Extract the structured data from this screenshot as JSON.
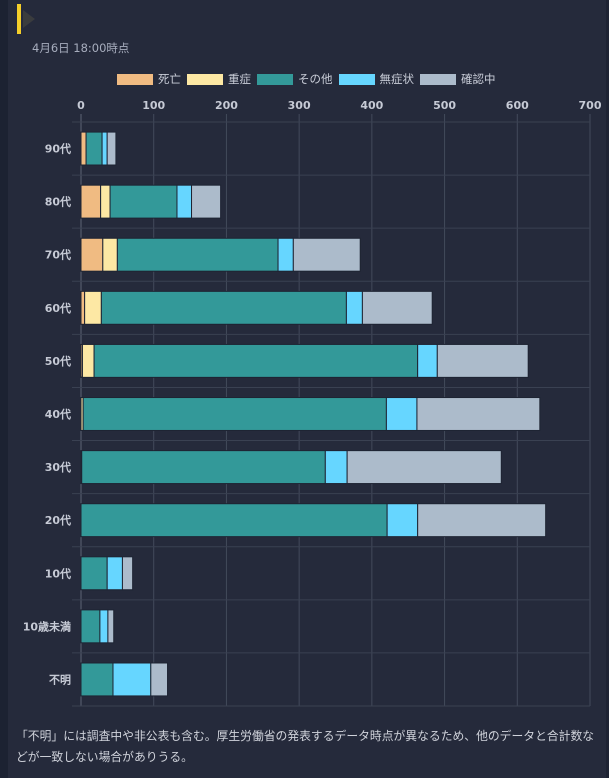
{
  "header": {
    "timestamp": "4月6日 18:00時点"
  },
  "legend": [
    {
      "label": "死亡",
      "color": "#f0bb82"
    },
    {
      "label": "重症",
      "color": "#fde8a4"
    },
    {
      "label": "その他",
      "color": "#339999"
    },
    {
      "label": "無症状",
      "color": "#66d6ff"
    },
    {
      "label": "確認中",
      "color": "#acbbcb"
    }
  ],
  "footnote": "「不明」には調査中や非公表も含む。厚生労働省の発表するデータ時点が異なるため、他のデータと合計数などが一致しない場合がありうる。",
  "chart_data": {
    "type": "bar",
    "orientation": "horizontal",
    "stacked": true,
    "title": "",
    "xlabel": "",
    "ylabel": "",
    "xlim": [
      0,
      700
    ],
    "x_ticks": [
      "0",
      "100",
      "200",
      "300",
      "400",
      "500",
      "600",
      "700"
    ],
    "grid": true,
    "legend_position": "top-center",
    "categories": [
      "90代",
      "80代",
      "70代",
      "60代",
      "50代",
      "40代",
      "30代",
      "20代",
      "10代",
      "10歳未満",
      "不明"
    ],
    "series": [
      {
        "name": "死亡",
        "color": "#f0bb82",
        "values": [
          7,
          27,
          30,
          5,
          2,
          0,
          0,
          0,
          0,
          0,
          0
        ]
      },
      {
        "name": "重症",
        "color": "#fde8a4",
        "values": [
          0,
          13,
          20,
          23,
          16,
          3,
          1,
          0,
          0,
          0,
          0
        ]
      },
      {
        "name": "その他",
        "color": "#339999",
        "values": [
          22,
          92,
          221,
          337,
          445,
          417,
          335,
          421,
          36,
          26,
          44
        ]
      },
      {
        "name": "無症状",
        "color": "#66d6ff",
        "values": [
          7,
          20,
          21,
          22,
          27,
          42,
          30,
          42,
          21,
          11,
          52
        ]
      },
      {
        "name": "確認中",
        "color": "#acbbcb",
        "values": [
          12,
          40,
          92,
          96,
          125,
          169,
          212,
          176,
          14,
          8,
          23
        ]
      }
    ]
  }
}
